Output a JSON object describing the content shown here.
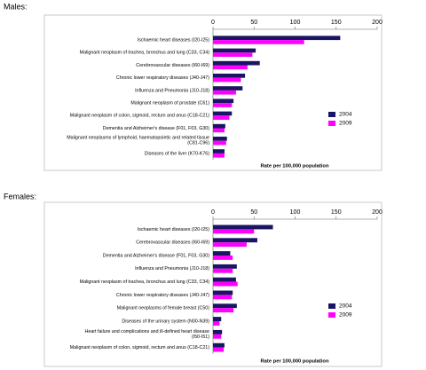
{
  "chart_data": [
    {
      "type": "bar",
      "orientation": "horizontal",
      "title": "Males:",
      "categories": [
        "Ischaemic heart diseases (I20-I25)",
        "Malignant neoplasm of trachea, bronchus and lung (C33, C34)",
        "Cerebrovascular diseases (I60-I69)",
        "Chronic lower respiratory diseases (J40-J47)",
        "Influenza and Pneumonia (J10-J18)",
        "Malignant neoplasm of prostate (C61)",
        "Malignant neoplasm of colon, sigmoid, rectum and anus (C18-C21)",
        "Dementia and Alzheimer's disease (F01, F03, G30)",
        "Malignant neoplasms of lymphoid, haematopoietic and related tissue (C81-C96)",
        "Diseases of the liver (K70-K76)"
      ],
      "series": [
        {
          "name": "2004",
          "color": "#1a1464",
          "values": [
            155,
            52,
            57,
            39,
            36,
            25,
            23,
            15,
            17,
            14
          ]
        },
        {
          "name": "2009",
          "color": "#ff00ff",
          "values": [
            111,
            48,
            42,
            34,
            28,
            23,
            20,
            14,
            16,
            14
          ]
        }
      ],
      "xlim": [
        0,
        200
      ],
      "xticks": [
        0,
        50,
        100,
        150,
        200
      ],
      "xlabel": "Rate per 100,000 population",
      "legend": "right"
    },
    {
      "type": "bar",
      "orientation": "horizontal",
      "title": "Females:",
      "categories": [
        "Ischaemic heart diseases (I20-I25)",
        "Cerebrovascular diseases (I60-I69)",
        "Dementia and Alzheimer's disease (F01, F03, G30)",
        "Influenza and Pneumonia (J10-J18)",
        "Malignant neoplasm of trachea, bronchus and lung (C33, C34)",
        "Chronic lower respiratory diseases (J40-J47)",
        "Malignant neoplasms of female breast (C50)",
        "Diseases of the urinary system (N00-N39)",
        "Heart failure and complications and ill-defined heart disease (I50-I51)",
        "Malignant neoplasm of colon, sigmoid, rectum and anus (C18-C21)"
      ],
      "series": [
        {
          "name": "2004",
          "color": "#1a1464",
          "values": [
            73,
            54,
            21,
            29,
            28,
            24,
            29,
            10,
            11,
            14
          ]
        },
        {
          "name": "2009",
          "color": "#ff00ff",
          "values": [
            50,
            41,
            24,
            24,
            30,
            23,
            25,
            8,
            10,
            13
          ]
        }
      ],
      "xlim": [
        0,
        200
      ],
      "xticks": [
        0,
        50,
        100,
        150,
        200
      ],
      "xlabel": "Rate per 100,000 population",
      "legend": "right"
    }
  ]
}
